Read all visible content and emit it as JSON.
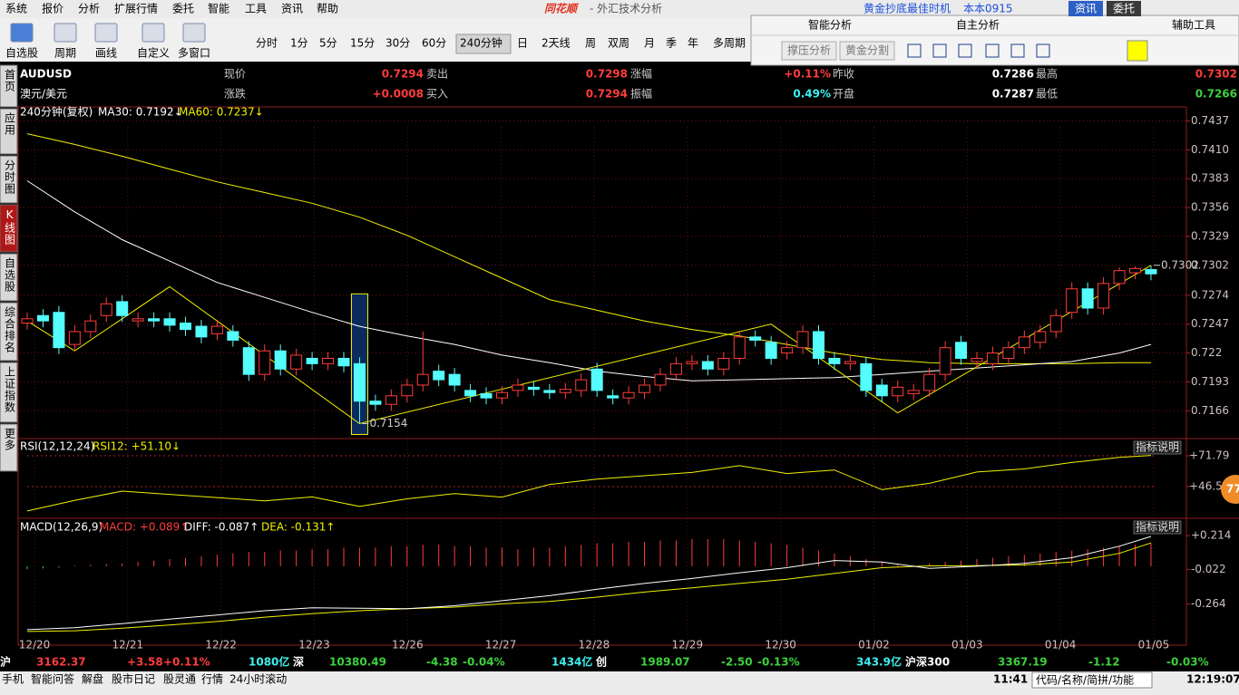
{
  "menu": [
    "系统",
    "报价",
    "分析",
    "扩展行情",
    "委托",
    "智能",
    "工具",
    "资讯",
    "帮助"
  ],
  "app_title": "同花顺",
  "window_title": "- 外汇技术分析",
  "promo": "黄金抄底最佳时机",
  "user": "本本0915",
  "top_buttons": [
    "资讯",
    "委托"
  ],
  "toolbar": {
    "buttons": [
      "自选股",
      "周期",
      "画线",
      "自定义",
      "多窗口"
    ],
    "periods": [
      "分时",
      "1分",
      "5分",
      "15分",
      "30分",
      "60分",
      "240分钟",
      "日",
      "2天线",
      "周",
      "双周",
      "月",
      "季",
      "年",
      "多周期"
    ],
    "selected_period": 6
  },
  "analysis_panel": {
    "tabs": [
      "智能分析",
      "自主分析",
      "辅助工具"
    ],
    "buttons": [
      "撑压分析",
      "黄金分割"
    ]
  },
  "sidebar": {
    "tabs": [
      "首页",
      "应用",
      "分时图",
      "K线图",
      "自选股",
      "综合排名",
      "上证指数",
      "更多"
    ],
    "selected": 3
  },
  "quote": {
    "symbol": "AUDUSD",
    "name": "澳元/美元",
    "rows": [
      [
        {
          "label": "现价",
          "value": "0.7294",
          "color": "#ff3c3c"
        },
        {
          "label": "卖出",
          "value": "0.7298",
          "color": "#ff3c3c"
        },
        {
          "label": "涨幅",
          "value": "+0.11%",
          "color": "#ff3c3c"
        },
        {
          "label": "昨收",
          "value": "0.7286",
          "color": "#ffffff"
        },
        {
          "label": "最高",
          "value": "0.7302",
          "color": "#ff3c3c"
        }
      ],
      [
        {
          "label": "涨跌",
          "value": "+0.0008",
          "color": "#ff3c3c"
        },
        {
          "label": "买入",
          "value": "0.7294",
          "color": "#ff3c3c"
        },
        {
          "label": "振幅",
          "value": "0.49%",
          "color": "#3cf0f0"
        },
        {
          "label": "开盘",
          "value": "0.7287",
          "color": "#ffffff"
        },
        {
          "label": "最低",
          "value": "0.7266",
          "color": "#3cd23c"
        }
      ]
    ]
  },
  "chart_data": {
    "type": "candlestick",
    "title": "240分钟(复权)",
    "categories": [
      "12/20",
      "12/21",
      "12/22",
      "12/23",
      "12/26",
      "12/27",
      "12/28",
      "12/29",
      "12/30",
      "01/02",
      "01/03",
      "01/04",
      "01/05"
    ],
    "ylim": [
      0.714,
      0.7445
    ],
    "yticks": [
      0.7437,
      {
        "value": 0.741,
        "label": "0.7410"
      },
      0.7383,
      0.7356,
      0.7329,
      0.7302,
      0.7274,
      0.7247,
      0.722,
      {
        "value": 0.7193,
        "label": "0.7193"
      },
      0.7166
    ],
    "up_color": "#ff3c3c",
    "down_color": "#54fcfc",
    "selected": 21,
    "open": [
      0.7248,
      0.7255,
      0.7258,
      0.7228,
      0.724,
      0.7255,
      0.7268,
      0.725,
      0.7252,
      0.7252,
      0.7248,
      0.7245,
      0.7238,
      0.724,
      0.7225,
      0.72,
      0.7222,
      0.7205,
      0.7215,
      0.721,
      0.7215,
      0.721,
      0.7175,
      0.7172,
      0.718,
      0.719,
      0.7203,
      0.72,
      0.7185,
      0.7182,
      0.7178,
      0.7185,
      0.7188,
      0.7185,
      0.7183,
      0.7185,
      0.7205,
      0.718,
      0.7178,
      0.7183,
      0.719,
      0.72,
      0.721,
      0.7212,
      0.7205,
      0.7215,
      0.7235,
      0.723,
      0.722,
      0.7225,
      0.724,
      0.7215,
      0.721,
      0.721,
      0.719,
      0.718,
      0.7182,
      0.7185,
      0.72,
      0.723,
      0.7212,
      0.721,
      0.7215,
      0.7225,
      0.723,
      0.724,
      0.7258,
      0.728,
      0.7262,
      0.7285,
      0.7295,
      0.7298
    ],
    "close": [
      0.7252,
      0.725,
      0.7225,
      0.724,
      0.725,
      0.7266,
      0.7255,
      0.7252,
      0.725,
      0.7246,
      0.7242,
      0.7235,
      0.7245,
      0.7232,
      0.72,
      0.7222,
      0.7205,
      0.7218,
      0.721,
      0.7215,
      0.7208,
      0.7175,
      0.7172,
      0.718,
      0.719,
      0.72,
      0.7195,
      0.719,
      0.718,
      0.7178,
      0.7183,
      0.719,
      0.7186,
      0.7183,
      0.7186,
      0.7195,
      0.7185,
      0.7178,
      0.7183,
      0.719,
      0.72,
      0.721,
      0.7212,
      0.7205,
      0.7215,
      0.7235,
      0.7232,
      0.7215,
      0.7225,
      0.724,
      0.7215,
      0.721,
      0.7212,
      0.7185,
      0.718,
      0.7188,
      0.7185,
      0.72,
      0.7225,
      0.7215,
      0.7215,
      0.722,
      0.7225,
      0.7235,
      0.724,
      0.7255,
      0.728,
      0.7262,
      0.7285,
      0.7297,
      0.7299,
      0.7294
    ],
    "high": [
      0.7258,
      0.7261,
      0.7264,
      0.7246,
      0.7256,
      0.7272,
      0.7274,
      0.7258,
      0.7258,
      0.7258,
      0.7254,
      0.7251,
      0.7251,
      0.7246,
      0.7231,
      0.7228,
      0.7228,
      0.7224,
      0.7221,
      0.7221,
      0.7221,
      0.7216,
      0.7181,
      0.7186,
      0.7196,
      0.724,
      0.7209,
      0.7206,
      0.7191,
      0.7188,
      0.7189,
      0.7196,
      0.7194,
      0.7191,
      0.7192,
      0.7201,
      0.7211,
      0.7186,
      0.7189,
      0.7196,
      0.7206,
      0.7216,
      0.7218,
      0.7218,
      0.7221,
      0.7241,
      0.7241,
      0.7236,
      0.7231,
      0.7246,
      0.7246,
      0.7221,
      0.7218,
      0.7216,
      0.7196,
      0.7194,
      0.7191,
      0.7206,
      0.7231,
      0.7236,
      0.7221,
      0.7226,
      0.7231,
      0.7241,
      0.7246,
      0.7261,
      0.7286,
      0.7286,
      0.7291,
      0.73,
      0.7301,
      0.7302
    ],
    "low": [
      0.7242,
      0.7244,
      0.7219,
      0.7222,
      0.7234,
      0.7249,
      0.7249,
      0.7244,
      0.7244,
      0.724,
      0.7236,
      0.7229,
      0.7232,
      0.7226,
      0.7194,
      0.7194,
      0.7199,
      0.7199,
      0.7204,
      0.7204,
      0.7202,
      0.7154,
      0.7166,
      0.7166,
      0.7174,
      0.7184,
      0.7189,
      0.7184,
      0.7174,
      0.7172,
      0.7172,
      0.7179,
      0.718,
      0.7177,
      0.7177,
      0.7179,
      0.7179,
      0.7172,
      0.7172,
      0.7177,
      0.7184,
      0.7194,
      0.7204,
      0.7199,
      0.7199,
      0.7209,
      0.7226,
      0.7209,
      0.7214,
      0.7219,
      0.7209,
      0.7204,
      0.7204,
      0.7179,
      0.7174,
      0.7174,
      0.7176,
      0.7179,
      0.7194,
      0.7209,
      0.7206,
      0.7204,
      0.7209,
      0.7219,
      0.7224,
      0.7234,
      0.7252,
      0.7256,
      0.7256,
      0.7279,
      0.7289,
      0.7288
    ],
    "annotations": [
      {
        "label": "0.7302",
        "x": 71,
        "y": 0.7302
      },
      {
        "label": "0.7154",
        "x": 21,
        "y": 0.7154
      }
    ],
    "ma30": {
      "label": "MA30: 0.7192↓",
      "color": "#ffffff",
      "x": [
        0,
        3,
        6,
        9,
        12,
        15,
        18,
        21,
        24,
        27,
        30,
        33,
        36,
        39,
        42,
        45,
        48,
        51,
        54,
        57,
        60,
        63,
        66,
        69,
        71
      ],
      "values": [
        0.7381,
        0.7352,
        0.7326,
        0.7306,
        0.7286,
        0.7272,
        0.7258,
        0.7245,
        0.7236,
        0.7228,
        0.7218,
        0.7211,
        0.7203,
        0.7198,
        0.7194,
        0.7195,
        0.7196,
        0.7197,
        0.72,
        0.7203,
        0.7206,
        0.7209,
        0.7212,
        0.722,
        0.7228
      ]
    },
    "ma60": {
      "label": "MA60: 0.7237↓",
      "color": "#f0f000",
      "x": [
        0,
        3,
        6,
        9,
        12,
        15,
        18,
        21,
        24,
        27,
        30,
        33,
        36,
        39,
        42,
        45,
        48,
        51,
        54,
        57,
        60,
        63,
        66,
        69,
        71
      ],
      "values": [
        0.7425,
        0.7415,
        0.7404,
        0.7392,
        0.738,
        0.737,
        0.736,
        0.7347,
        0.733,
        0.731,
        0.729,
        0.727,
        0.726,
        0.725,
        0.7242,
        0.7236,
        0.7228,
        0.722,
        0.7214,
        0.7211,
        0.721,
        0.721,
        0.721,
        0.7211,
        0.7211
      ]
    },
    "zigzag": {
      "color": "#f0f000",
      "x": [
        0,
        3,
        9,
        21,
        47,
        55,
        71
      ],
      "values": [
        0.725,
        0.7222,
        0.7282,
        0.7154,
        0.7247,
        0.7164,
        0.7302
      ]
    },
    "rsi": {
      "title": "RSI(12,12,24)",
      "label": "RSI12: +51.10↓",
      "button": "指标说明",
      "ylim": [
        20.5,
        84.4
      ],
      "yticks": [
        {
          "value": 71.79,
          "label": "+71.79"
        },
        {
          "value": 46.53,
          "label": "+46.53"
        }
      ],
      "color": "#f0f000",
      "x": [
        0,
        3,
        6,
        9,
        12,
        15,
        18,
        21,
        24,
        27,
        30,
        33,
        36,
        39,
        42,
        45,
        48,
        51,
        54,
        57,
        60,
        63,
        66,
        69,
        71
      ],
      "values": [
        26.5,
        35.2,
        42.8,
        40.1,
        37.5,
        34.8,
        38,
        30.2,
        36.5,
        40.8,
        37.9,
        48.3,
        52.6,
        55.4,
        58.1,
        63.7,
        57.2,
        60.1,
        44,
        49.2,
        58.5,
        61,
        66.3,
        70.4,
        72.1
      ]
    },
    "macd": {
      "title": "MACD(12,26,9)",
      "labels": [
        "MACD: +0.089↑",
        "DIFF: -0.087↑",
        "DEA: -0.131↑"
      ],
      "label_colors": [
        "#ff3c3c",
        "#ffffff",
        "#f0f000"
      ],
      "button": "指标说明",
      "ylim": [
        -0.506,
        0.322
      ],
      "yticks": [
        {
          "value": 0.214,
          "label": "+0.214"
        },
        -0.022,
        -0.264
      ],
      "hist": [
        -0.02,
        -0.015,
        -0.01,
        0.005,
        0.01,
        0.015,
        0.02,
        0.03,
        0.04,
        0.05,
        0.06,
        0.07,
        0.08,
        0.09,
        0.1,
        0.1,
        0.11,
        0.11,
        0.12,
        0.12,
        0.13,
        0.13,
        0.13,
        0.14,
        0.14,
        0.15,
        0.15,
        0.14,
        0.14,
        0.13,
        0.13,
        0.12,
        0.13,
        0.13,
        0.14,
        0.15,
        0.16,
        0.16,
        0.17,
        0.17,
        0.18,
        0.18,
        0.19,
        0.19,
        0.19,
        0.18,
        0.17,
        0.16,
        0.15,
        0.13,
        0.11,
        0.09,
        0.07,
        0.05,
        0.03,
        0.01,
        0.01,
        0.02,
        0.03,
        0.04,
        0.05,
        0.06,
        0.07,
        0.08,
        0.09,
        0.1,
        0.11,
        0.12,
        0.13,
        0.14,
        0.15,
        0.16
      ],
      "diff": {
        "color": "#ffffff",
        "x": [
          0,
          3,
          6,
          9,
          12,
          15,
          18,
          21,
          24,
          27,
          30,
          33,
          36,
          39,
          42,
          45,
          48,
          51,
          54,
          57,
          60,
          63,
          66,
          69,
          71
        ],
        "values": [
          -0.442,
          -0.428,
          -0.4,
          -0.368,
          -0.34,
          -0.31,
          -0.29,
          -0.293,
          -0.296,
          -0.275,
          -0.24,
          -0.205,
          -0.16,
          -0.12,
          -0.085,
          -0.045,
          -0.01,
          0.04,
          0.03,
          -0.015,
          0,
          0.02,
          0.06,
          0.14,
          0.208
        ]
      },
      "dea": {
        "color": "#f0f000",
        "x": [
          0,
          3,
          6,
          9,
          12,
          15,
          18,
          21,
          24,
          27,
          30,
          33,
          36,
          39,
          42,
          45,
          48,
          51,
          54,
          57,
          60,
          63,
          66,
          69,
          71
        ],
        "values": [
          -0.455,
          -0.45,
          -0.432,
          -0.41,
          -0.385,
          -0.355,
          -0.33,
          -0.31,
          -0.296,
          -0.285,
          -0.262,
          -0.245,
          -0.215,
          -0.18,
          -0.15,
          -0.12,
          -0.09,
          -0.05,
          -0.01,
          0.003,
          0.005,
          0.01,
          0.03,
          0.09,
          0.163
        ]
      }
    },
    "badge": "77"
  },
  "ticker": [
    {
      "text": "沪",
      "color": "#ffffff"
    },
    {
      "text": "3162.37",
      "color": "#ff3c3c"
    },
    {
      "text": "+3.58",
      "color": "#ff3c3c"
    },
    {
      "text": "+0.11%",
      "color": "#ff3c3c"
    },
    {
      "text": "1080亿",
      "color": "#3cf0f0"
    },
    {
      "text": "深",
      "color": "#ffffff"
    },
    {
      "text": "10380.49",
      "color": "#3cd23c"
    },
    {
      "text": "-4.38",
      "color": "#3cd23c"
    },
    {
      "text": "-0.04%",
      "color": "#3cd23c"
    },
    {
      "text": "1434亿",
      "color": "#3cf0f0"
    },
    {
      "text": "创",
      "color": "#ffffff"
    },
    {
      "text": "1989.07",
      "color": "#3cd23c"
    },
    {
      "text": "-2.50",
      "color": "#3cd23c"
    },
    {
      "text": "-0.13%",
      "color": "#3cd23c"
    },
    {
      "text": "343.9亿",
      "color": "#3cf0f0"
    },
    {
      "text": "沪深300",
      "color": "#ffffff"
    },
    {
      "text": "3367.19",
      "color": "#3cd23c"
    },
    {
      "text": "-1.12",
      "color": "#3cd23c"
    },
    {
      "text": "-0.03%",
      "color": "#3cd23c"
    }
  ],
  "status": {
    "items": [
      "手机",
      "智能问答",
      "解盘",
      "股市日记",
      "股灵通",
      "行情",
      "24小时滚动"
    ],
    "time_short": "11:41",
    "search": "代码/名称/简拼/功能",
    "clock": "12:19:07"
  }
}
